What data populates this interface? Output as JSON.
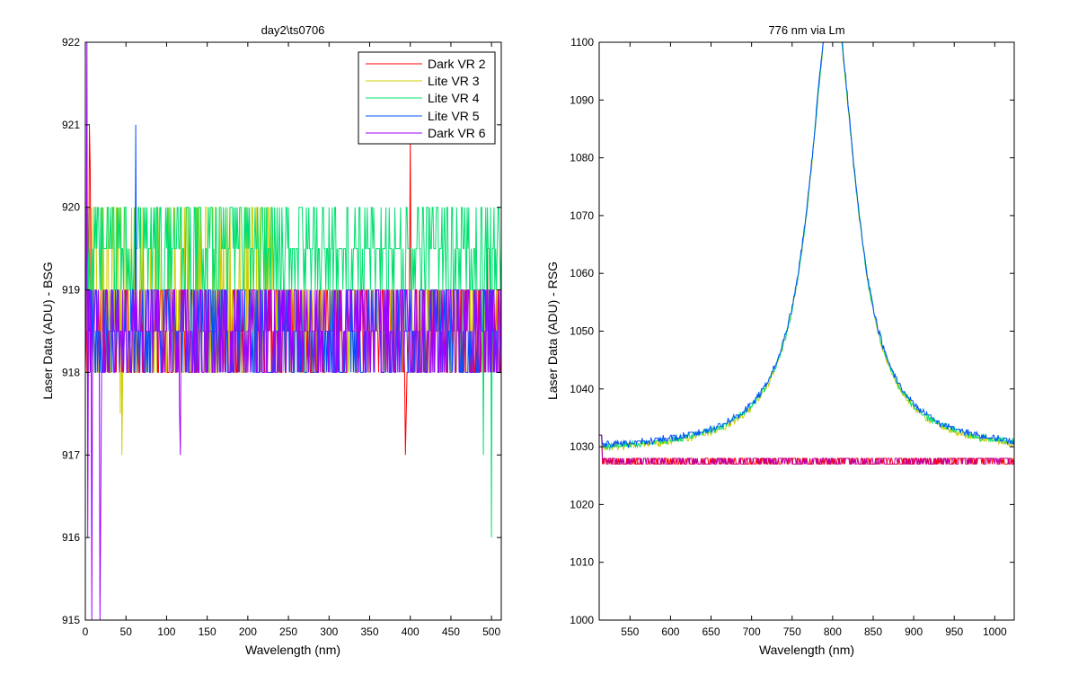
{
  "chart_data": [
    {
      "type": "line",
      "title": "day2\\ts0706",
      "xlabel": "Wavelength (nm)",
      "ylabel": "Laser Data (ADU) - BSG",
      "xlim": [
        0,
        512
      ],
      "ylim": [
        915,
        922
      ],
      "xticks": [
        0,
        50,
        100,
        150,
        200,
        250,
        300,
        350,
        400,
        450,
        500
      ],
      "yticks": [
        915,
        916,
        917,
        918,
        919,
        920,
        921,
        922
      ],
      "legend_position": "top-right",
      "series": [
        {
          "name": "Dark VR 2",
          "color": "#ff0000",
          "base": 918,
          "toggle": 919,
          "levels": [
            918,
            918.5,
            919
          ],
          "spikes": [
            {
              "x": 1,
              "y": 920
            },
            {
              "x": 5,
              "y": 921
            },
            {
              "x": 6,
              "y": 920.5
            },
            {
              "x": 394,
              "y": 917
            },
            {
              "x": 395,
              "y": 917.5
            },
            {
              "x": 400,
              "y": 920.8
            },
            {
              "x": 495,
              "y": 919.5
            }
          ]
        },
        {
          "name": "Lite VR 3",
          "color": "#cccc00",
          "base": 918,
          "toggle": 919,
          "levels": [
            918,
            918.5,
            919,
            920
          ],
          "spikes": [
            {
              "x": 43,
              "y": 917.5
            },
            {
              "x": 45,
              "y": 917
            },
            {
              "x": 505,
              "y": 919.5
            }
          ]
        },
        {
          "name": "Lite VR 4",
          "color": "#00e070",
          "base": 919,
          "toggle": 920,
          "levels": [
            919,
            919.5,
            920
          ],
          "spikes": [
            {
              "x": 490,
              "y": 917
            },
            {
              "x": 500,
              "y": 916
            },
            {
              "x": 503,
              "y": 920
            }
          ]
        },
        {
          "name": "Lite VR 5",
          "color": "#0050ff",
          "base": 918,
          "toggle": 919,
          "levels": [
            918,
            918.5,
            919
          ],
          "spikes": [
            {
              "x": 62,
              "y": 921
            }
          ]
        },
        {
          "name": "Dark VR 6",
          "color": "#a000ff",
          "base": 918,
          "toggle": 919,
          "levels": [
            918,
            918.5,
            919
          ],
          "spikes": [
            {
              "x": 2,
              "y": 922
            },
            {
              "x": 3,
              "y": 916
            },
            {
              "x": 8,
              "y": 915
            },
            {
              "x": 18,
              "y": 915
            },
            {
              "x": 19,
              "y": 916.5
            },
            {
              "x": 117,
              "y": 917
            },
            {
              "x": 116,
              "y": 917.5
            }
          ]
        }
      ]
    },
    {
      "type": "line",
      "title": "776 nm via Lm",
      "xlabel": "Wavelength (nm)",
      "ylabel": "Laser Data (ADU) - RSG",
      "xlim": [
        512,
        1024
      ],
      "ylim": [
        1000,
        1100
      ],
      "xticks": [
        550,
        600,
        650,
        700,
        750,
        800,
        850,
        900,
        950,
        1000
      ],
      "yticks": [
        1000,
        1010,
        1020,
        1030,
        1040,
        1050,
        1060,
        1070,
        1080,
        1090,
        1100
      ],
      "peak": {
        "center": 800,
        "height": 1100,
        "baseline": 1029
      },
      "series": [
        {
          "name": "Dark VR 2",
          "color": "#ff0000",
          "kind": "flat",
          "value": 1027.5
        },
        {
          "name": "Lite VR 3",
          "color": "#cccc00",
          "kind": "peak"
        },
        {
          "name": "Lite VR 4",
          "color": "#00e070",
          "kind": "peak"
        },
        {
          "name": "Lite VR 5",
          "color": "#0050ff",
          "kind": "peak"
        },
        {
          "name": "Dark VR 6",
          "color": "#c000a0",
          "kind": "flat",
          "value": 1027.5
        }
      ]
    }
  ]
}
